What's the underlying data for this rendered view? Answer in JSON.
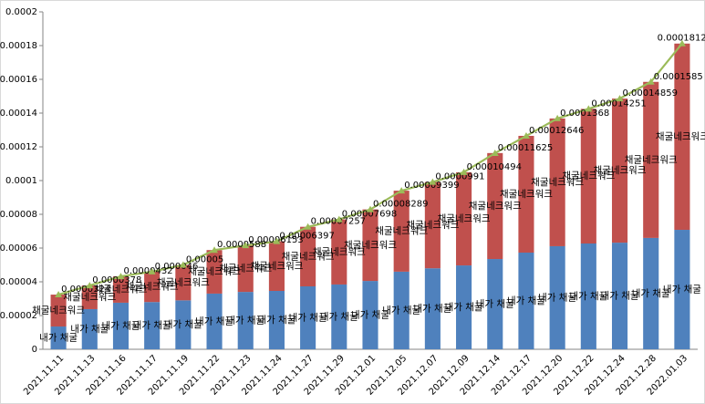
{
  "chart_data": {
    "type": "stacked-bar-line",
    "categories": [
      "2021.11.11",
      "2021.11.13",
      "2021.11.16",
      "2021.11.17",
      "2021.11.19",
      "2021.11.22",
      "2021.11.23",
      "2021.11.24",
      "2021.11.27",
      "2021.11.29",
      "2021.12.01",
      "2021.12.05",
      "2021.12.07",
      "2021.12.09",
      "2021.12.14",
      "2021.12.17",
      "2021.12.20",
      "2021.12.22",
      "2021.12.24",
      "2021.12.28",
      "2022.01.03"
    ],
    "series": [
      {
        "name": "내가 채굴",
        "type": "bar",
        "color": "#4f81bd",
        "values": [
          1.35e-05,
          2.38e-05,
          2.76e-05,
          2.8e-05,
          2.9e-05,
          3.3e-05,
          3.4e-05,
          3.46e-05,
          3.73e-05,
          3.84e-05,
          4.05e-05,
          4.6e-05,
          4.8e-05,
          4.97e-05,
          5.35e-05,
          5.73e-05,
          6.11e-05,
          6.27e-05,
          6.32e-05,
          6.6e-05,
          7.08e-05
        ]
      },
      {
        "name": "채굴네크워크",
        "type": "bar",
        "color": "#c0504d",
        "values": [
          1.89e-05,
          1.4e-05,
          1.56e-05,
          1.8e-05,
          2.1e-05,
          2.58e-05,
          2.75e-05,
          2.94e-05,
          3.53e-05,
          3.86e-05,
          4.24e-05,
          4.8e-05,
          5.11e-05,
          5.52e-05,
          6.28e-05,
          6.92e-05,
          7.57e-05,
          7.98e-05,
          8.54e-05,
          9.25e-05,
          0.0001104
        ]
      },
      {
        "type": "line",
        "color": "#9bbb59",
        "values": [
          3.24e-05,
          3.78e-05,
          4.32e-05,
          4.6e-05,
          5e-05,
          5.88e-05,
          6.153e-05,
          6.397e-05,
          7.257e-05,
          7.698e-05,
          8.289e-05,
          9.399e-05,
          9.91e-05,
          0.00010494,
          0.00011625,
          0.00012646,
          0.0001368,
          0.00014251,
          0.00014859,
          0.0001585,
          0.00018122
        ]
      }
    ],
    "ylim": [
      0,
      0.0002
    ],
    "yticks": [
      0,
      2e-05,
      4e-05,
      6e-05,
      8e-05,
      0.0001,
      0.00012,
      0.00014,
      0.00016,
      0.00018,
      0.0002
    ]
  }
}
